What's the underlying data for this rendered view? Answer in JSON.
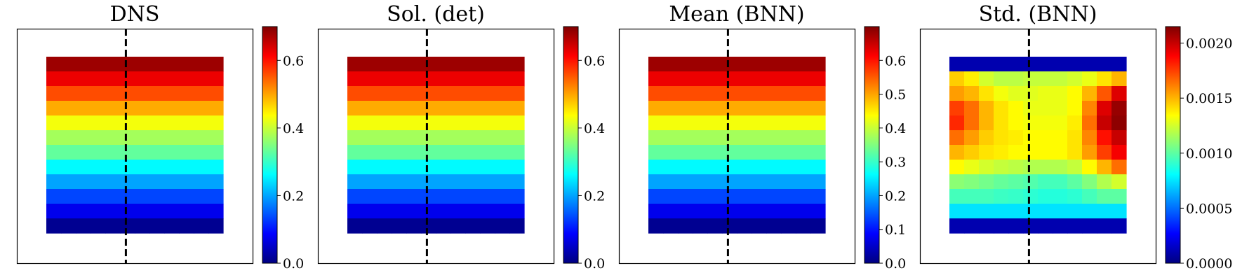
{
  "chart_data": [
    {
      "type": "heatmap",
      "title": "DNS",
      "colormap": "jet",
      "colorbar": {
        "min": 0.0,
        "max": 0.7,
        "ticks": [
          "0.0",
          "0.2",
          "0.4",
          "0.6"
        ]
      },
      "dashed_vertical_line": true,
      "grid_cols": 12,
      "rows": [
        [
          0.68,
          0.68,
          0.68,
          0.68,
          0.68,
          0.68,
          0.68,
          0.68,
          0.68,
          0.68,
          0.68,
          0.68
        ],
        [
          0.625,
          0.625,
          0.625,
          0.625,
          0.625,
          0.625,
          0.625,
          0.625,
          0.625,
          0.625,
          0.625,
          0.625
        ],
        [
          0.56,
          0.56,
          0.56,
          0.56,
          0.56,
          0.56,
          0.56,
          0.56,
          0.56,
          0.56,
          0.56,
          0.56
        ],
        [
          0.495,
          0.495,
          0.495,
          0.495,
          0.495,
          0.495,
          0.495,
          0.495,
          0.495,
          0.495,
          0.495,
          0.495
        ],
        [
          0.43,
          0.43,
          0.43,
          0.43,
          0.43,
          0.43,
          0.43,
          0.43,
          0.43,
          0.43,
          0.43,
          0.43
        ],
        [
          0.375,
          0.375,
          0.375,
          0.375,
          0.375,
          0.375,
          0.375,
          0.375,
          0.375,
          0.375,
          0.375,
          0.375
        ],
        [
          0.33,
          0.33,
          0.33,
          0.33,
          0.33,
          0.33,
          0.33,
          0.33,
          0.33,
          0.33,
          0.33,
          0.33
        ],
        [
          0.26,
          0.26,
          0.26,
          0.26,
          0.26,
          0.26,
          0.26,
          0.26,
          0.26,
          0.26,
          0.26,
          0.26
        ],
        [
          0.2,
          0.2,
          0.2,
          0.2,
          0.2,
          0.2,
          0.2,
          0.2,
          0.2,
          0.2,
          0.2,
          0.2
        ],
        [
          0.135,
          0.135,
          0.135,
          0.135,
          0.135,
          0.135,
          0.135,
          0.135,
          0.135,
          0.135,
          0.135,
          0.135
        ],
        [
          0.075,
          0.075,
          0.075,
          0.075,
          0.075,
          0.075,
          0.075,
          0.075,
          0.075,
          0.075,
          0.075,
          0.075
        ],
        [
          0.012,
          0.012,
          0.012,
          0.012,
          0.012,
          0.012,
          0.012,
          0.012,
          0.012,
          0.012,
          0.012,
          0.012
        ]
      ]
    },
    {
      "type": "heatmap",
      "title": "Sol. (det)",
      "colormap": "jet",
      "colorbar": {
        "min": 0.0,
        "max": 0.7,
        "ticks": [
          "0.0",
          "0.2",
          "0.4",
          "0.6"
        ]
      },
      "dashed_vertical_line": true,
      "grid_cols": 12,
      "rows": [
        [
          0.68,
          0.68,
          0.68,
          0.68,
          0.68,
          0.68,
          0.68,
          0.68,
          0.68,
          0.68,
          0.68,
          0.68
        ],
        [
          0.625,
          0.625,
          0.625,
          0.625,
          0.625,
          0.625,
          0.625,
          0.625,
          0.625,
          0.625,
          0.625,
          0.625
        ],
        [
          0.56,
          0.56,
          0.56,
          0.56,
          0.56,
          0.56,
          0.56,
          0.56,
          0.56,
          0.56,
          0.56,
          0.56
        ],
        [
          0.495,
          0.495,
          0.495,
          0.495,
          0.495,
          0.495,
          0.495,
          0.495,
          0.495,
          0.495,
          0.495,
          0.495
        ],
        [
          0.43,
          0.43,
          0.43,
          0.43,
          0.43,
          0.43,
          0.43,
          0.43,
          0.43,
          0.43,
          0.43,
          0.43
        ],
        [
          0.375,
          0.375,
          0.375,
          0.375,
          0.375,
          0.375,
          0.375,
          0.375,
          0.375,
          0.375,
          0.375,
          0.375
        ],
        [
          0.33,
          0.33,
          0.33,
          0.33,
          0.33,
          0.33,
          0.33,
          0.33,
          0.33,
          0.33,
          0.33,
          0.33
        ],
        [
          0.26,
          0.26,
          0.26,
          0.26,
          0.26,
          0.26,
          0.26,
          0.26,
          0.26,
          0.26,
          0.26,
          0.26
        ],
        [
          0.2,
          0.2,
          0.2,
          0.2,
          0.2,
          0.2,
          0.2,
          0.2,
          0.2,
          0.2,
          0.2,
          0.2
        ],
        [
          0.135,
          0.135,
          0.135,
          0.135,
          0.135,
          0.135,
          0.135,
          0.135,
          0.135,
          0.135,
          0.135,
          0.135
        ],
        [
          0.075,
          0.075,
          0.075,
          0.075,
          0.075,
          0.075,
          0.075,
          0.075,
          0.075,
          0.075,
          0.075,
          0.075
        ],
        [
          0.012,
          0.012,
          0.012,
          0.012,
          0.012,
          0.012,
          0.012,
          0.012,
          0.012,
          0.012,
          0.012,
          0.012
        ]
      ]
    },
    {
      "type": "heatmap",
      "title": "Mean (BNN)",
      "colormap": "jet",
      "colorbar": {
        "min": 0.0,
        "max": 0.7,
        "ticks": [
          "0.0",
          "0.1",
          "0.2",
          "0.3",
          "0.4",
          "0.5",
          "0.6"
        ]
      },
      "dashed_vertical_line": true,
      "grid_cols": 12,
      "rows": [
        [
          0.68,
          0.68,
          0.68,
          0.68,
          0.68,
          0.68,
          0.68,
          0.68,
          0.68,
          0.68,
          0.68,
          0.68
        ],
        [
          0.625,
          0.625,
          0.625,
          0.625,
          0.625,
          0.625,
          0.625,
          0.625,
          0.625,
          0.625,
          0.625,
          0.625
        ],
        [
          0.56,
          0.56,
          0.56,
          0.56,
          0.56,
          0.56,
          0.56,
          0.56,
          0.56,
          0.56,
          0.56,
          0.56
        ],
        [
          0.495,
          0.495,
          0.495,
          0.495,
          0.495,
          0.495,
          0.495,
          0.495,
          0.495,
          0.495,
          0.495,
          0.495
        ],
        [
          0.43,
          0.43,
          0.43,
          0.43,
          0.43,
          0.43,
          0.43,
          0.43,
          0.43,
          0.43,
          0.43,
          0.43
        ],
        [
          0.375,
          0.375,
          0.375,
          0.375,
          0.375,
          0.375,
          0.375,
          0.375,
          0.375,
          0.375,
          0.375,
          0.375
        ],
        [
          0.33,
          0.33,
          0.33,
          0.33,
          0.33,
          0.33,
          0.33,
          0.33,
          0.33,
          0.33,
          0.33,
          0.33
        ],
        [
          0.26,
          0.26,
          0.26,
          0.26,
          0.26,
          0.26,
          0.26,
          0.26,
          0.26,
          0.26,
          0.26,
          0.26
        ],
        [
          0.2,
          0.2,
          0.2,
          0.2,
          0.2,
          0.2,
          0.2,
          0.2,
          0.2,
          0.2,
          0.2,
          0.2
        ],
        [
          0.135,
          0.135,
          0.135,
          0.135,
          0.135,
          0.135,
          0.135,
          0.135,
          0.135,
          0.135,
          0.135,
          0.135
        ],
        [
          0.075,
          0.075,
          0.075,
          0.075,
          0.075,
          0.075,
          0.075,
          0.075,
          0.075,
          0.075,
          0.075,
          0.075
        ],
        [
          0.012,
          0.012,
          0.012,
          0.012,
          0.012,
          0.012,
          0.012,
          0.012,
          0.012,
          0.012,
          0.012,
          0.012
        ]
      ]
    },
    {
      "type": "heatmap",
      "title": "Std. (BNN)",
      "colormap": "jet",
      "colorbar": {
        "min": 0.0,
        "max": 0.00215,
        "ticks": [
          "0.0000",
          "0.0005",
          "0.0010",
          "0.0015",
          "0.0020"
        ]
      },
      "dashed_vertical_line": true,
      "grid_cols": 12,
      "rows": [
        [
          0.0001,
          0.0001,
          0.0001,
          0.0001,
          0.0001,
          0.0001,
          0.0001,
          0.0001,
          0.0001,
          0.0001,
          0.0001,
          0.0001
        ],
        [
          0.00145,
          0.00138,
          0.00125,
          0.0012,
          0.0012,
          0.00122,
          0.00122,
          0.00122,
          0.00125,
          0.0013,
          0.0014,
          0.0015
        ],
        [
          0.00155,
          0.0015,
          0.0014,
          0.00132,
          0.00128,
          0.00128,
          0.0013,
          0.0013,
          0.00135,
          0.0015,
          0.0017,
          0.00195
        ],
        [
          0.00175,
          0.00165,
          0.0015,
          0.0014,
          0.00135,
          0.0013,
          0.0013,
          0.0013,
          0.00135,
          0.0016,
          0.00195,
          0.0021
        ],
        [
          0.0018,
          0.00165,
          0.0015,
          0.0014,
          0.00135,
          0.00132,
          0.00132,
          0.00132,
          0.00138,
          0.00165,
          0.002,
          0.00212
        ],
        [
          0.00165,
          0.00155,
          0.00145,
          0.0014,
          0.00138,
          0.00135,
          0.00135,
          0.00135,
          0.0014,
          0.0016,
          0.00185,
          0.002
        ],
        [
          0.0015,
          0.00145,
          0.0014,
          0.00138,
          0.00135,
          0.00135,
          0.00135,
          0.00135,
          0.0014,
          0.00155,
          0.00175,
          0.0019
        ],
        [
          0.00135,
          0.0013,
          0.00125,
          0.00122,
          0.0012,
          0.00118,
          0.00118,
          0.00118,
          0.00122,
          0.00135,
          0.0015,
          0.00165
        ],
        [
          0.0011,
          0.00108,
          0.00105,
          0.00102,
          0.001,
          0.00098,
          0.00095,
          0.00095,
          0.001,
          0.00108,
          0.00118,
          0.00125
        ],
        [
          0.00095,
          0.00095,
          0.00095,
          0.00093,
          0.00092,
          0.0009,
          0.00088,
          0.00088,
          0.0009,
          0.00095,
          0.001,
          0.001
        ],
        [
          0.00075,
          0.00075,
          0.00075,
          0.00075,
          0.00075,
          0.00075,
          0.00075,
          0.00075,
          0.00075,
          0.00075,
          0.00075,
          0.00075
        ],
        [
          0.0001,
          0.0001,
          0.0001,
          0.0001,
          0.0001,
          0.0001,
          0.0001,
          0.0001,
          0.0001,
          0.0001,
          0.0001,
          0.0001
        ]
      ]
    }
  ]
}
